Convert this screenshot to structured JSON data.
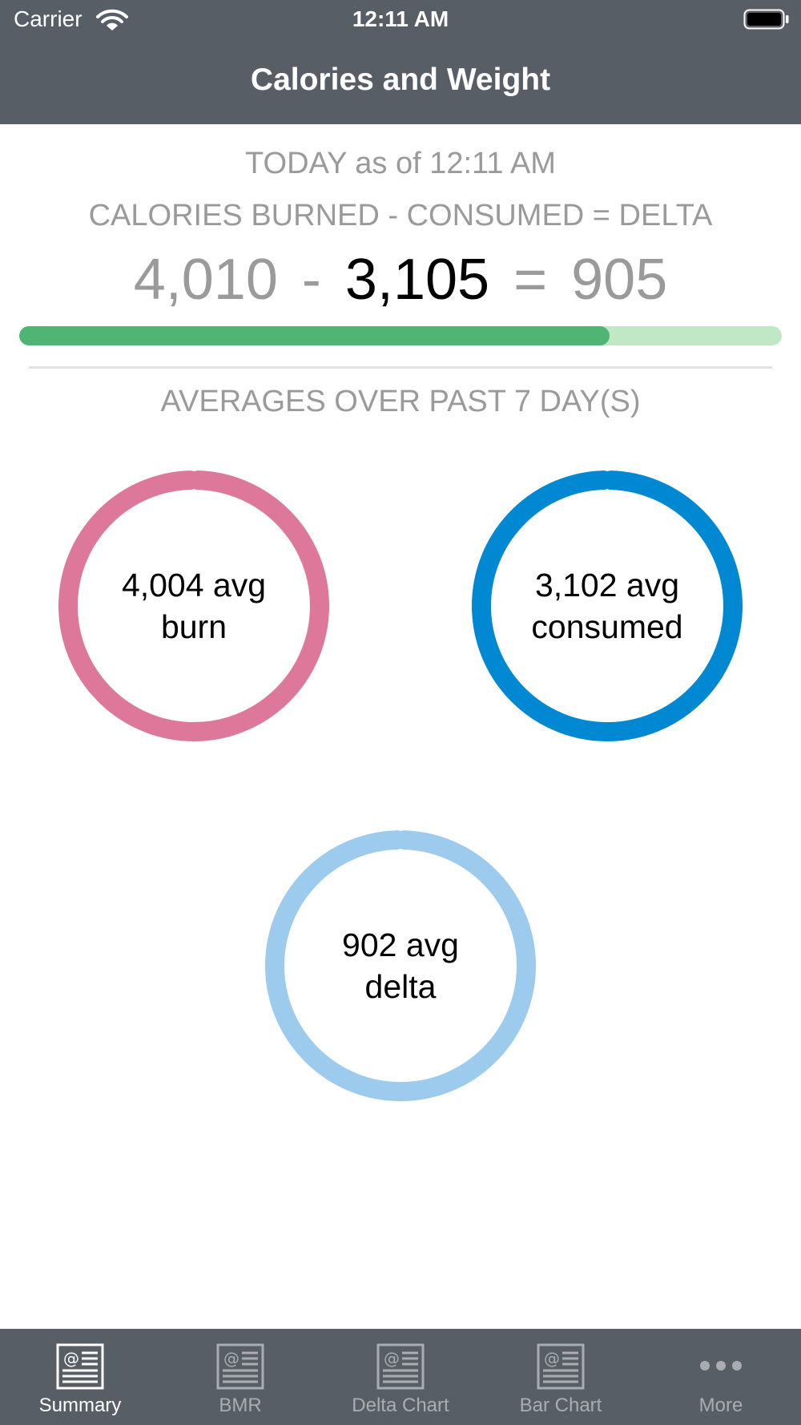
{
  "status_bar": {
    "carrier": "Carrier",
    "time": "12:11 AM"
  },
  "nav": {
    "title": "Calories and Weight"
  },
  "today": {
    "label": "TODAY as of 12:11 AM",
    "formula": "CALORIES BURNED - CONSUMED = DELTA",
    "burned": "4,010",
    "minus": "-",
    "consumed": "3,105",
    "equals": "=",
    "delta": "905",
    "progress_fraction": 0.774
  },
  "averages": {
    "label": "AVERAGES OVER PAST 7 DAY(S)",
    "rings": [
      {
        "line1": "4,004 avg",
        "line2": "burn",
        "color": "#de789b"
      },
      {
        "line1": "3,102 avg",
        "line2": "consumed",
        "color": "#0088d2"
      },
      {
        "line1": "902 avg",
        "line2": "delta",
        "color": "#9ccbed"
      }
    ]
  },
  "colors": {
    "header_bg": "#585e66",
    "progress_fill": "#4fb575",
    "progress_track": "#c1e8c5"
  },
  "tabbar": {
    "tabs": [
      {
        "label": "Summary",
        "icon": "document-icon",
        "active": true
      },
      {
        "label": "BMR",
        "icon": "document-icon",
        "active": false
      },
      {
        "label": "Delta Chart",
        "icon": "document-icon",
        "active": false
      },
      {
        "label": "Bar Chart",
        "icon": "document-icon",
        "active": false
      },
      {
        "label": "More",
        "icon": "more-dots-icon",
        "active": false
      }
    ]
  }
}
